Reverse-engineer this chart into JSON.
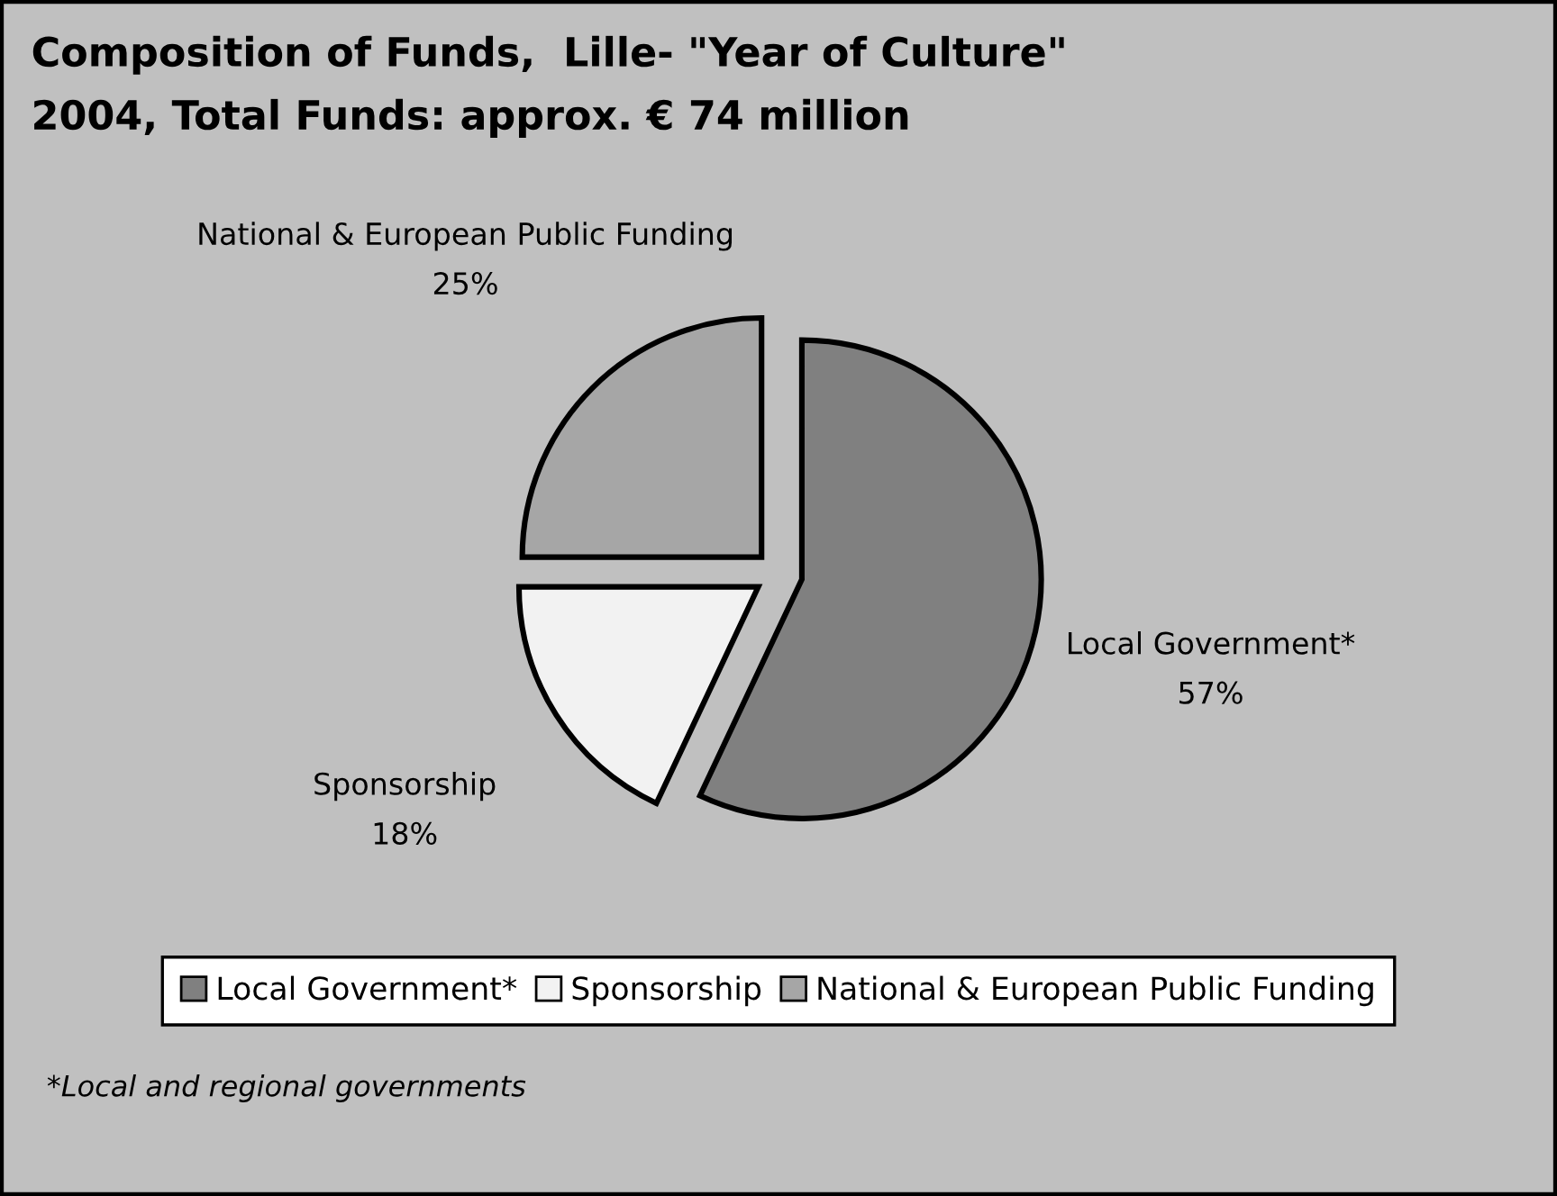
{
  "chart_data": {
    "type": "pie",
    "title": "Composition of Funds,  Lille- \"Year of Culture\"\n2004, Total Funds: approx. € 74 million",
    "categories": [
      "Local Government*",
      "Sponsorship",
      "National & European Public Funding"
    ],
    "values": [
      57,
      18,
      25
    ],
    "value_labels": [
      "57%",
      "18%",
      "25%"
    ],
    "colors": [
      "#808080",
      "#f2f2f2",
      "#a6a6a6"
    ],
    "legend": "bottom",
    "annotations": [
      "*Local and regional governments"
    ]
  }
}
